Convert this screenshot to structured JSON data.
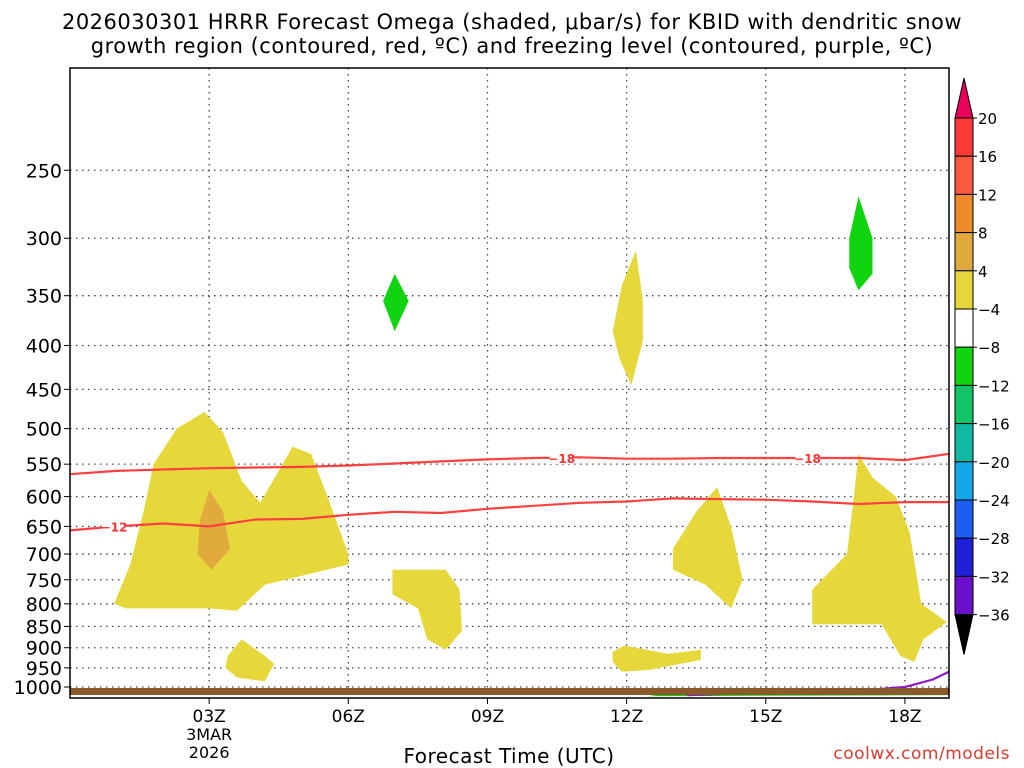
{
  "title_line1": "2026030301 HRRR Forecast Omega (shaded, μbar/s) for KBID with dendritic snow",
  "title_line2": "growth region (contoured, red, ºC) and freezing level (contoured, purple, ºC)",
  "credit": "coolwx.com/models",
  "chart_data": {
    "type": "heatmap",
    "title": "2026030301 HRRR Forecast Omega (shaded, μbar/s) for KBID with dendritic snow growth region (contoured, red, ºC) and freezing level (contoured, purple, ºC)",
    "xlabel": "Forecast Time (UTC)",
    "ylabel": "",
    "x_ticks": [
      {
        "value": 3,
        "label": "03Z",
        "sub": [
          "3MAR",
          "2026"
        ]
      },
      {
        "value": 6,
        "label": "06Z"
      },
      {
        "value": 9,
        "label": "09Z"
      },
      {
        "value": 12,
        "label": "12Z"
      },
      {
        "value": 15,
        "label": "15Z"
      },
      {
        "value": 18,
        "label": "18Z"
      }
    ],
    "xlim": [
      0,
      18.95
    ],
    "y_ticks": [
      250,
      300,
      350,
      400,
      450,
      500,
      550,
      600,
      650,
      700,
      750,
      800,
      850,
      900,
      950,
      1000
    ],
    "ylim_hPa": [
      1030,
      190
    ],
    "y_scale": "log",
    "grid": true,
    "colorbar": {
      "labels": [
        20,
        16,
        12,
        8,
        4,
        -4,
        -8,
        -12,
        -16,
        -20,
        -24,
        -28,
        -32,
        -36
      ],
      "colors": [
        "#e8005a",
        "#ff3838",
        "#ff5840",
        "#ee8a2a",
        "#e0aa3c",
        "#e6d83a",
        "#ffffff",
        "#11d411",
        "#11c466",
        "#11b8a2",
        "#14a8e8",
        "#1c5ff0",
        "#2020d8",
        "#6a10cc",
        "#a010c8",
        "#a9a9a9",
        "#000000"
      ]
    },
    "omega_regions": [
      {
        "value_range": "4 to 8",
        "color": "#e6d83a",
        "approx_time": 3.0,
        "approx_pressure_range": [
          500,
          800
        ]
      },
      {
        "value_range": "8 to 12",
        "color": "#e0aa3c",
        "approx_time": 3.0,
        "approx_pressure_range": [
          630,
          720
        ]
      },
      {
        "value_range": "4 to 8",
        "color": "#e6d83a",
        "approx_time": 8.0,
        "approx_pressure_range": [
          730,
          870
        ]
      },
      {
        "value_range": "4 to 8",
        "color": "#e6d83a",
        "approx_time": 12.0,
        "approx_pressure_range": [
          320,
          440
        ]
      },
      {
        "value_range": "4 to 8",
        "color": "#e6d83a",
        "approx_time": 14.0,
        "approx_pressure_range": [
          590,
          810
        ]
      },
      {
        "value_range": "4 to 8",
        "color": "#e6d83a",
        "approx_time": 17.3,
        "approx_pressure_range": [
          550,
          840
        ]
      },
      {
        "value_range": "4 to 8",
        "color": "#e6d83a",
        "approx_time": 12.6,
        "approx_pressure_range": [
          900,
          950
        ]
      },
      {
        "value_range": "4 to 8",
        "color": "#e6d83a",
        "approx_time": 3.8,
        "approx_pressure_range": [
          880,
          980
        ]
      },
      {
        "value_range": "-4 to -8",
        "color": "#11d411",
        "approx_time": 7.0,
        "approx_pressure_range": [
          330,
          380
        ]
      },
      {
        "value_range": "-4 to -8",
        "color": "#11d411",
        "approx_time": 17.0,
        "approx_pressure_range": [
          270,
          340
        ]
      },
      {
        "value_range": "-4 to -8",
        "color": "#11d411",
        "approx_time": 15.5,
        "approx_pressure_range": [
          1005,
          1015
        ]
      }
    ],
    "series": [
      {
        "name": "-18",
        "color": "#ff4040",
        "x": [
          0,
          1,
          2,
          3,
          4,
          5,
          6,
          7,
          8,
          9,
          10,
          11,
          12,
          13,
          14,
          15,
          16,
          17,
          18,
          18.95
        ],
        "y": [
          565,
          560,
          558,
          556,
          555,
          554,
          552,
          549,
          546,
          543,
          541,
          540,
          542,
          542,
          541,
          541,
          541,
          541,
          544,
          535
        ]
      },
      {
        "name": "-12",
        "color": "#ff4040",
        "x": [
          0,
          1,
          2,
          3,
          4,
          5,
          6,
          7,
          8,
          9,
          10,
          11,
          12,
          13,
          14,
          15,
          16,
          17,
          18,
          18.95
        ],
        "y": [
          657,
          650,
          645,
          650,
          638,
          637,
          630,
          625,
          627,
          620,
          615,
          610,
          608,
          603,
          604,
          605,
          608,
          612,
          609,
          609
        ]
      },
      {
        "name": "0",
        "color": "#8a18c8",
        "x": [
          13.3,
          14,
          15,
          16,
          17,
          18,
          18.6,
          18.95
        ],
        "y": [
          1022,
          1019,
          1016,
          1014,
          1010,
          1000,
          980,
          960
        ]
      }
    ]
  }
}
